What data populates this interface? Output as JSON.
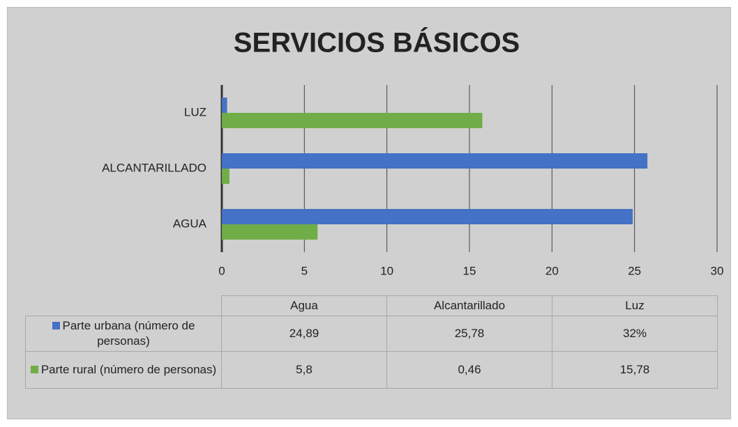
{
  "chart_data": {
    "type": "hbar",
    "title": "SERVICIOS BÁSICOS",
    "categories": [
      "AGUA",
      "ALCANTARILLADO",
      "LUZ"
    ],
    "table_headers": [
      "Agua",
      "Alcantarillado",
      "Luz"
    ],
    "series": [
      {
        "name": "Parte urbana (número de personas)",
        "color": "#4472c4",
        "values": [
          24.89,
          25.78,
          0.32
        ],
        "value_labels": [
          "24,89",
          "25,78",
          "32%"
        ]
      },
      {
        "name": "Parte rural (número de personas)",
        "color": "#70ad47",
        "values": [
          5.8,
          0.46,
          15.78
        ],
        "value_labels": [
          "5,8",
          "0,46",
          "15,78"
        ]
      }
    ],
    "xlim": [
      0,
      30
    ],
    "xticks": [
      0,
      5,
      10,
      15,
      20,
      25,
      30
    ],
    "grid": true
  }
}
